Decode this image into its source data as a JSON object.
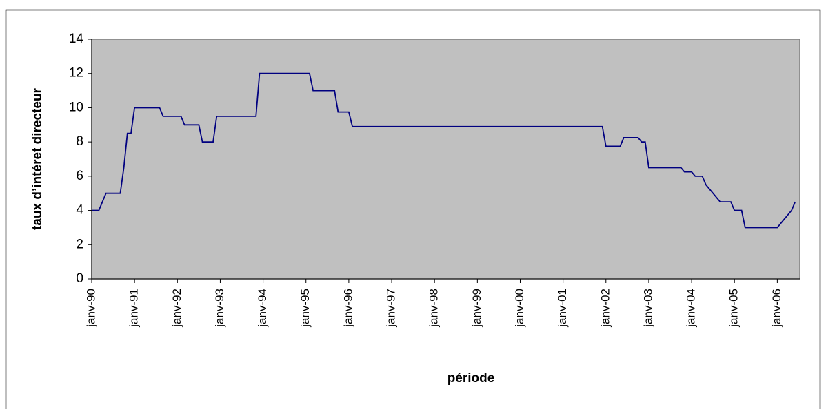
{
  "chart_data": {
    "type": "line",
    "y_label": "taux d’intéret directeur",
    "x_label": "période",
    "color": "#000080",
    "ylim": [
      0,
      14
    ],
    "yticks": [
      0,
      2,
      4,
      6,
      8,
      10,
      12,
      14
    ],
    "categories": [
      "janv-90",
      null,
      null,
      null,
      null,
      null,
      null,
      null,
      null,
      null,
      null,
      null,
      "janv-91",
      null,
      null,
      null,
      null,
      null,
      null,
      null,
      null,
      null,
      null,
      null,
      "janv-92",
      null,
      null,
      null,
      null,
      null,
      null,
      null,
      null,
      null,
      null,
      null,
      "janv-93",
      null,
      null,
      null,
      null,
      null,
      null,
      null,
      null,
      null,
      null,
      null,
      "janv-94",
      null,
      null,
      null,
      null,
      null,
      null,
      null,
      null,
      null,
      null,
      null,
      "janv-95",
      null,
      null,
      null,
      null,
      null,
      null,
      null,
      null,
      null,
      null,
      null,
      "janv-96",
      null,
      null,
      null,
      null,
      null,
      null,
      null,
      null,
      null,
      null,
      null,
      "janv-97",
      null,
      null,
      null,
      null,
      null,
      null,
      null,
      null,
      null,
      null,
      null,
      "janv-98",
      null,
      null,
      null,
      null,
      null,
      null,
      null,
      null,
      null,
      null,
      null,
      "janv-99",
      null,
      null,
      null,
      null,
      null,
      null,
      null,
      null,
      null,
      null,
      null,
      "janv-00",
      null,
      null,
      null,
      null,
      null,
      null,
      null,
      null,
      null,
      null,
      null,
      "janv-01",
      null,
      null,
      null,
      null,
      null,
      null,
      null,
      null,
      null,
      null,
      null,
      "janv-02",
      null,
      null,
      null,
      null,
      null,
      null,
      null,
      null,
      null,
      null,
      null,
      "janv-03",
      null,
      null,
      null,
      null,
      null,
      null,
      null,
      null,
      null,
      null,
      null,
      "janv-04",
      null,
      null,
      null,
      null,
      null,
      null,
      null,
      null,
      null,
      null,
      null,
      "janv-05",
      null,
      null,
      null,
      null,
      null,
      null,
      null,
      null,
      null,
      null,
      null,
      "janv-06",
      null,
      null,
      null,
      null,
      null
    ],
    "values": [
      4,
      4,
      4,
      4.5,
      5,
      5,
      5,
      5,
      5,
      6.5,
      8.5,
      8.5,
      10,
      10,
      10,
      10,
      10,
      10,
      10,
      10,
      9.5,
      9.5,
      9.5,
      9.5,
      9.5,
      9.5,
      9,
      9,
      9,
      9,
      9,
      8,
      8,
      8,
      8,
      9.5,
      9.5,
      9.5,
      9.5,
      9.5,
      9.5,
      9.5,
      9.5,
      9.5,
      9.5,
      9.5,
      9.5,
      12,
      12,
      12,
      12,
      12,
      12,
      12,
      12,
      12,
      12,
      12,
      12,
      12,
      12,
      12,
      11,
      11,
      11,
      11,
      11,
      11,
      11,
      9.75,
      9.75,
      9.75,
      9.75,
      8.9,
      8.9,
      8.9,
      8.9,
      8.9,
      8.9,
      8.9,
      8.9,
      8.9,
      8.9,
      8.9,
      8.9,
      8.9,
      8.9,
      8.9,
      8.9,
      8.9,
      8.9,
      8.9,
      8.9,
      8.9,
      8.9,
      8.9,
      8.9,
      8.9,
      8.9,
      8.9,
      8.9,
      8.9,
      8.9,
      8.9,
      8.9,
      8.9,
      8.9,
      8.9,
      8.9,
      8.9,
      8.9,
      8.9,
      8.9,
      8.9,
      8.9,
      8.9,
      8.9,
      8.9,
      8.9,
      8.9,
      8.9,
      8.9,
      8.9,
      8.9,
      8.9,
      8.9,
      8.9,
      8.9,
      8.9,
      8.9,
      8.9,
      8.9,
      8.9,
      8.9,
      8.9,
      8.9,
      8.9,
      8.9,
      8.9,
      8.9,
      8.9,
      8.9,
      8.9,
      8.9,
      7.75,
      7.75,
      7.75,
      7.75,
      7.75,
      8.25,
      8.25,
      8.25,
      8.25,
      8.25,
      8,
      8,
      6.5,
      6.5,
      6.5,
      6.5,
      6.5,
      6.5,
      6.5,
      6.5,
      6.5,
      6.5,
      6.25,
      6.25,
      6.25,
      6,
      6,
      6,
      5.5,
      5.25,
      5,
      4.75,
      4.5,
      4.5,
      4.5,
      4.5,
      4,
      4,
      4,
      3,
      3,
      3,
      3,
      3,
      3,
      3,
      3,
      3,
      3,
      3.25,
      3.5,
      3.75,
      4,
      4.5
    ]
  }
}
